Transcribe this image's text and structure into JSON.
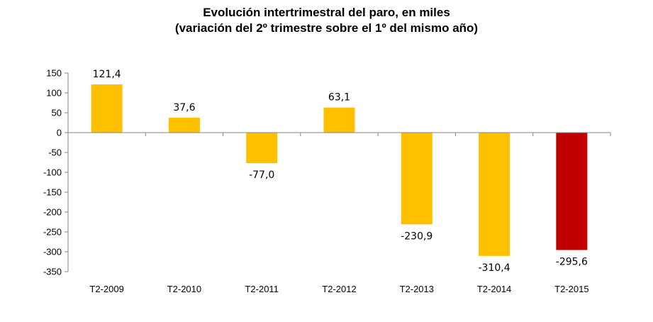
{
  "chart_data": {
    "type": "bar",
    "title": "Evolución intertrimestral del paro, en miles",
    "subtitle": "(variación del 2º trimestre  sobre el 1º del  mismo año)",
    "categories": [
      "T2-2009",
      "T2-2010",
      "T2-2011",
      "T2-2012",
      "T2-2013",
      "T2-2014",
      "T2-2015"
    ],
    "values": [
      121.4,
      37.6,
      -77.0,
      63.1,
      -230.9,
      -310.4,
      -295.6
    ],
    "value_labels": [
      "121,4",
      "37,6",
      "-77,0",
      "63,1",
      "-230,9",
      "-310,4",
      "-295,6"
    ],
    "colors": [
      "#FFC000",
      "#FFC000",
      "#FFC000",
      "#FFC000",
      "#FFC000",
      "#FFC000",
      "#C00000"
    ],
    "yticks": [
      150,
      100,
      50,
      0,
      -50,
      -100,
      -150,
      -200,
      -250,
      -300,
      -350
    ],
    "ylim": [
      -350,
      150
    ],
    "grid": false,
    "legend": "none"
  }
}
